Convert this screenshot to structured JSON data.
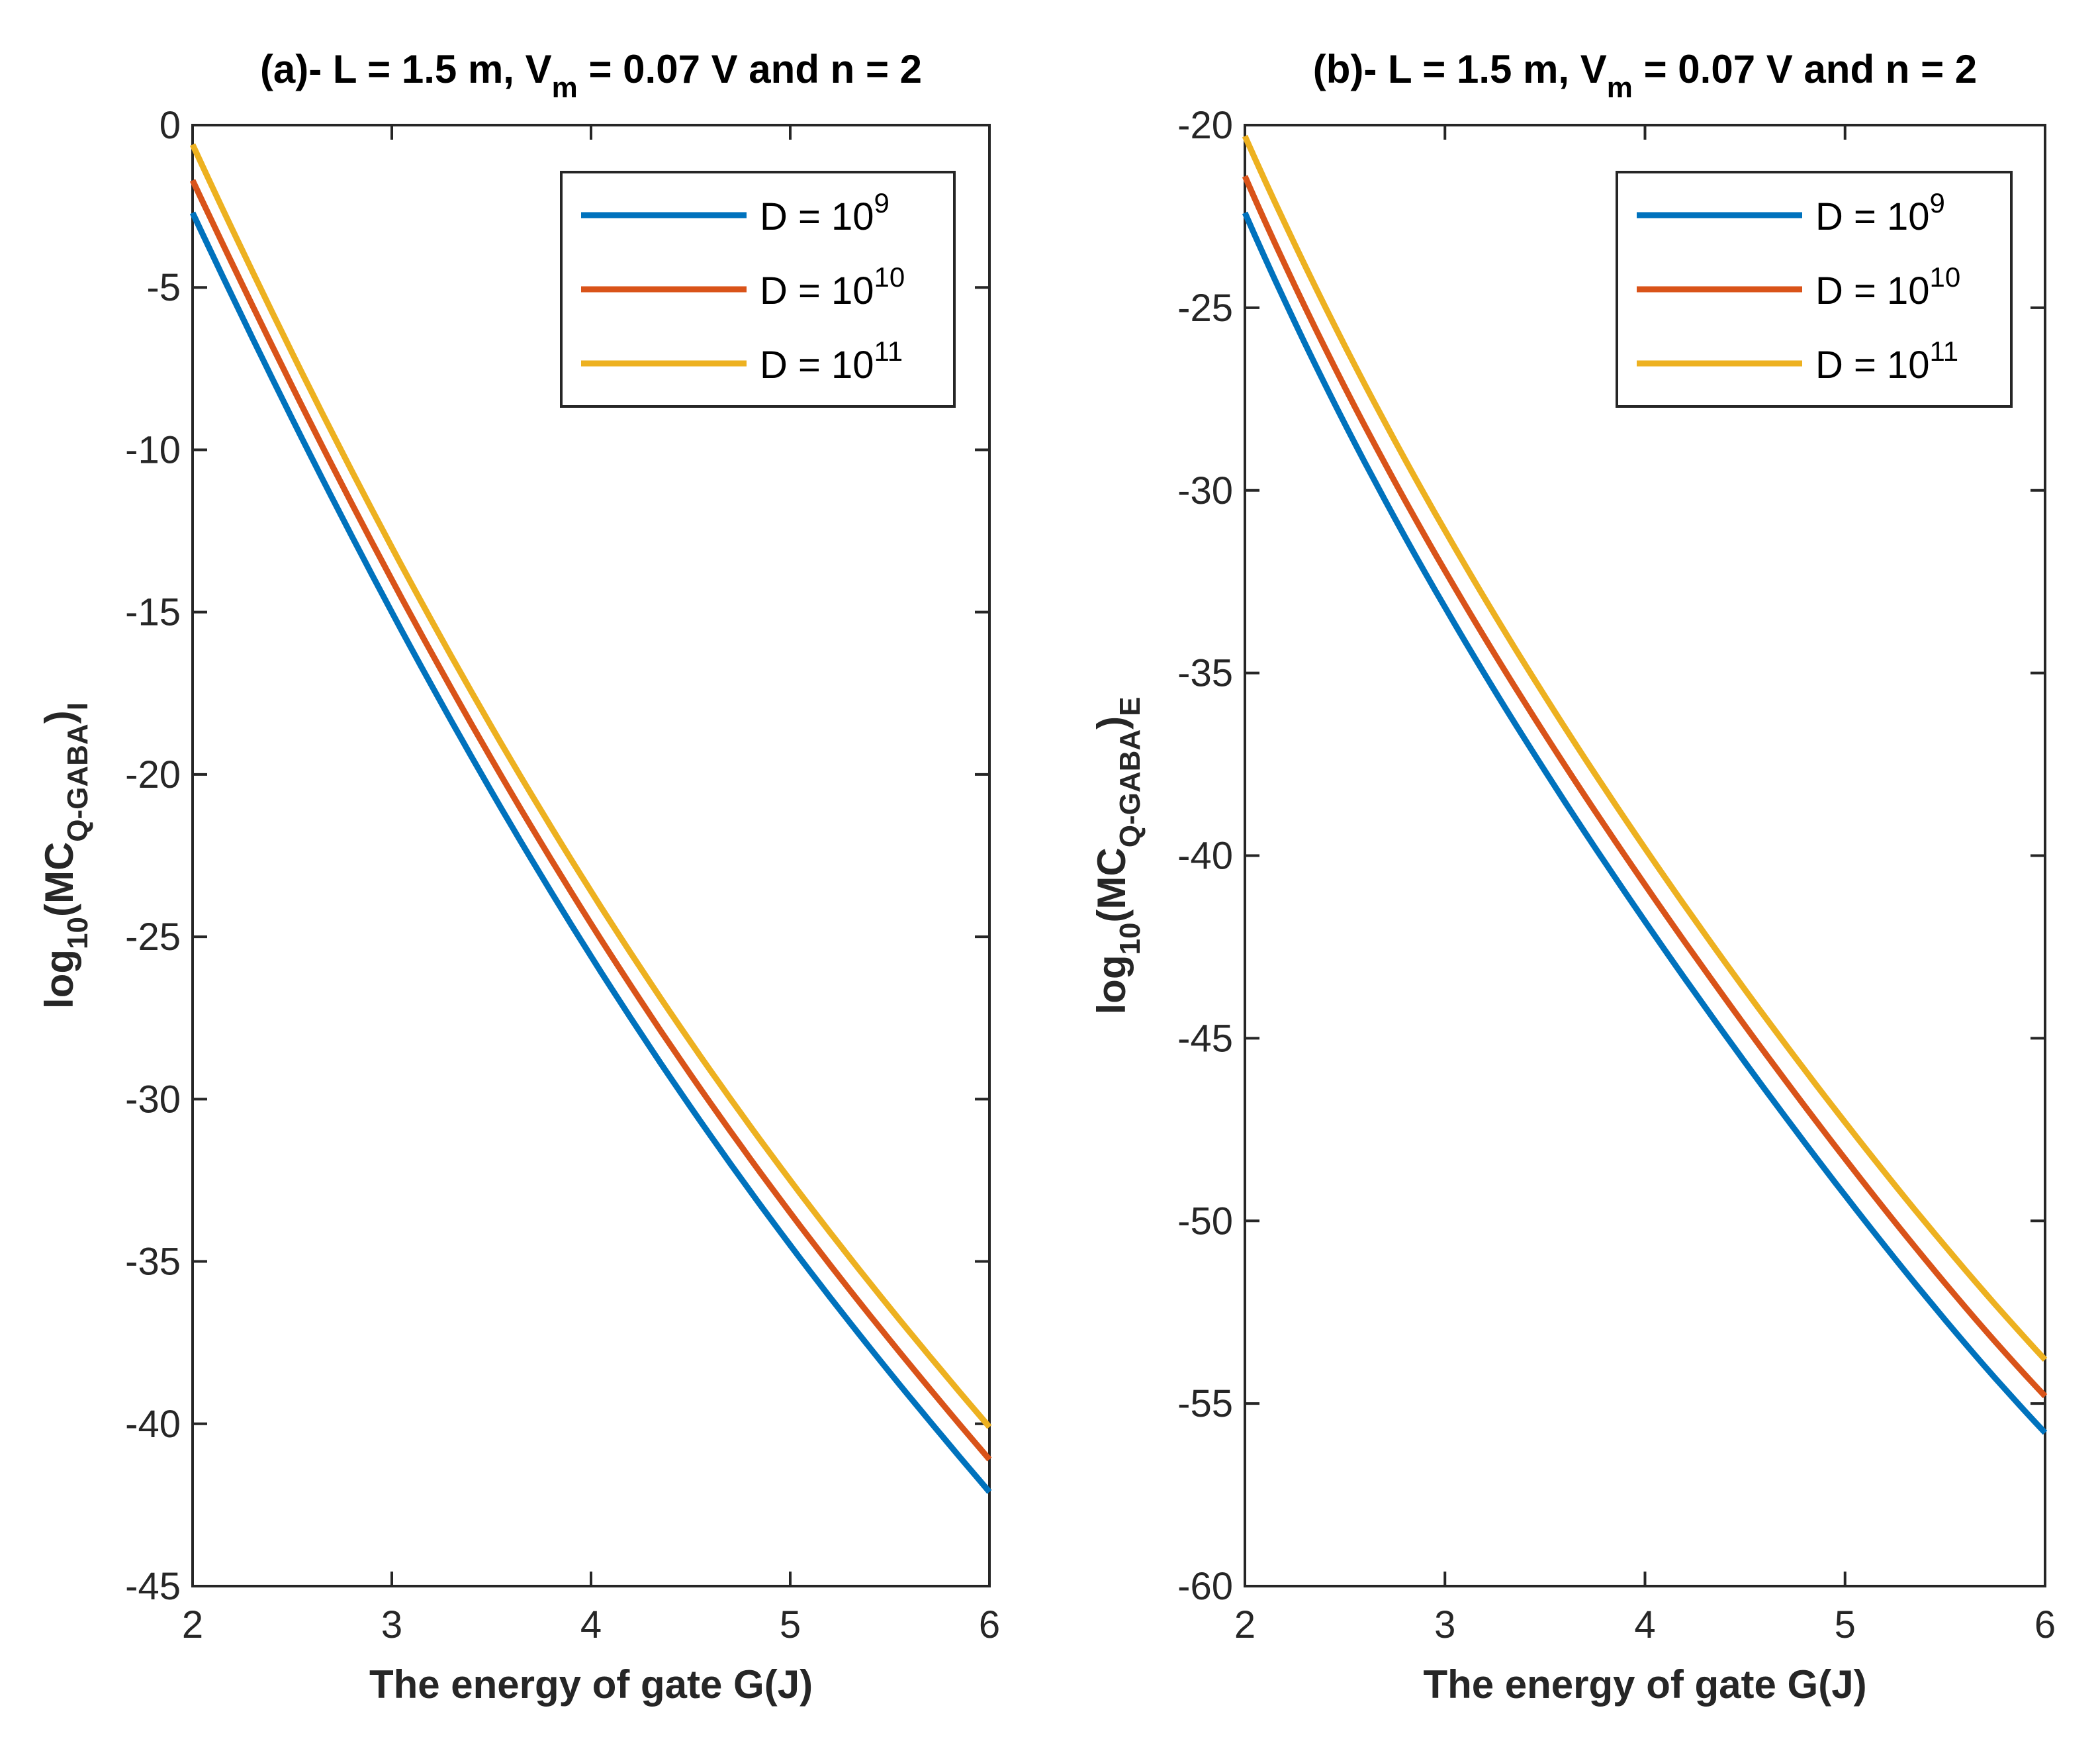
{
  "chart_data": [
    {
      "type": "line",
      "panel": "a",
      "title": {
        "pre": "(a)- L = 1.5 m, V",
        "sub": "m",
        "post": " = 0.07 V and n = 2"
      },
      "xlabel": "The energy of gate G(J)",
      "ylabel": {
        "a": "log",
        "a_sub": "10",
        "b": "(MC",
        "b_sub": "Q-GABA",
        "c": ")",
        "c_sub": "I"
      },
      "xlim": [
        2,
        6
      ],
      "ylim": [
        -45,
        0
      ],
      "xticks": [
        2,
        3,
        4,
        5,
        6
      ],
      "yticks": [
        0,
        -5,
        -10,
        -15,
        -20,
        -25,
        -30,
        -35,
        -40,
        -45
      ],
      "grid": false,
      "legend_position": "top-right",
      "x": [
        2,
        3,
        4,
        5,
        6
      ],
      "series": [
        {
          "name": "D = 10",
          "exp": "9",
          "color": "#0072BD",
          "values": [
            -2.7,
            -15.0,
            -25.6,
            -34.5,
            -42.1
          ]
        },
        {
          "name": "D = 10",
          "exp": "10",
          "color": "#D95319",
          "values": [
            -1.7,
            -14.0,
            -24.6,
            -33.5,
            -41.1
          ]
        },
        {
          "name": "D = 10",
          "exp": "11",
          "color": "#EDB120",
          "values": [
            -0.6,
            -13.0,
            -23.6,
            -32.5,
            -40.1
          ]
        }
      ]
    },
    {
      "type": "line",
      "panel": "b",
      "title": {
        "pre": "(b)- L = 1.5 m, V",
        "sub": "m",
        "post": " = 0.07 V and n = 2"
      },
      "xlabel": "The energy of gate G(J)",
      "ylabel": {
        "a": "log",
        "a_sub": "10",
        "b": "(MC",
        "b_sub": "Q-GABA",
        "c": ")",
        "c_sub": "E"
      },
      "xlim": [
        2,
        6
      ],
      "ylim": [
        -60,
        -20
      ],
      "xticks": [
        2,
        3,
        4,
        5,
        6
      ],
      "yticks": [
        -20,
        -25,
        -30,
        -35,
        -40,
        -45,
        -50,
        -55,
        -60
      ],
      "grid": false,
      "legend_position": "top-right",
      "x": [
        2,
        3,
        4,
        5,
        6
      ],
      "series": [
        {
          "name": "D = 10",
          "exp": "9",
          "color": "#0072BD",
          "values": [
            -22.4,
            -33.2,
            -41.8,
            -49.3,
            -55.8
          ]
        },
        {
          "name": "D = 10",
          "exp": "10",
          "color": "#D95319",
          "values": [
            -21.4,
            -32.2,
            -40.8,
            -48.3,
            -54.8
          ]
        },
        {
          "name": "D = 10",
          "exp": "11",
          "color": "#EDB120",
          "values": [
            -20.3,
            -31.1,
            -39.8,
            -47.3,
            -53.8
          ]
        }
      ]
    }
  ]
}
